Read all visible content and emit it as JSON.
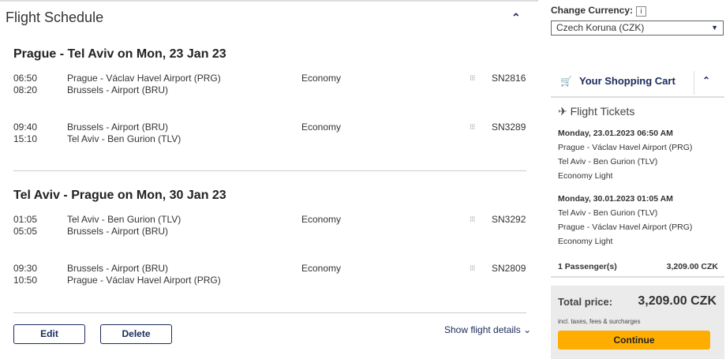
{
  "schedule": {
    "title": "Flight Schedule",
    "legs": [
      {
        "heading": "Prague - Tel Aviv on Mon, 23 Jan 23",
        "segments": [
          {
            "dep": "06:50",
            "arr": "08:20",
            "from": "Prague - Václav Havel Airport (PRG)",
            "to": "Brussels - Airport (BRU)",
            "class": "Economy",
            "flight": "SN2816"
          },
          {
            "dep": "09:40",
            "arr": "15:10",
            "from": "Brussels - Airport (BRU)",
            "to": "Tel Aviv - Ben Gurion (TLV)",
            "class": "Economy",
            "flight": "SN3289"
          }
        ]
      },
      {
        "heading": "Tel Aviv - Prague on Mon, 30 Jan 23",
        "segments": [
          {
            "dep": "01:05",
            "arr": "05:05",
            "from": "Tel Aviv - Ben Gurion (TLV)",
            "to": "Brussels - Airport (BRU)",
            "class": "Economy",
            "flight": "SN3292"
          },
          {
            "dep": "09:30",
            "arr": "10:50",
            "from": "Brussels - Airport (BRU)",
            "to": "Prague - Václav Havel Airport (PRG)",
            "class": "Economy",
            "flight": "SN2809"
          }
        ]
      }
    ],
    "edit": "Edit",
    "delete": "Delete",
    "details": "Show flight details"
  },
  "currency": {
    "label": "Change Currency:",
    "info": "i",
    "selected": "Czech Koruna (CZK)"
  },
  "cart": {
    "title": "Your Shopping Cart",
    "section": "Flight Tickets",
    "trips": [
      {
        "date": "Monday, 23.01.2023 06:50 AM",
        "from": "Prague - Václav Havel Airport (PRG)",
        "to": "Tel Aviv - Ben Gurion (TLV)",
        "fare": "Economy Light"
      },
      {
        "date": "Monday, 30.01.2023 01:05 AM",
        "from": "Tel Aviv - Ben Gurion (TLV)",
        "to": "Prague - Václav Havel Airport (PRG)",
        "fare": "Economy Light"
      }
    ],
    "passengers": "1 Passenger(s)",
    "passenger_price": "3,209.00 CZK",
    "total_label": "Total price:",
    "total": "3,209.00 CZK",
    "incl": "incl. taxes, fees & surcharges",
    "continue": "Continue"
  },
  "colors": {
    "accent": "#1a2a5a",
    "cta": "#ffad00"
  }
}
